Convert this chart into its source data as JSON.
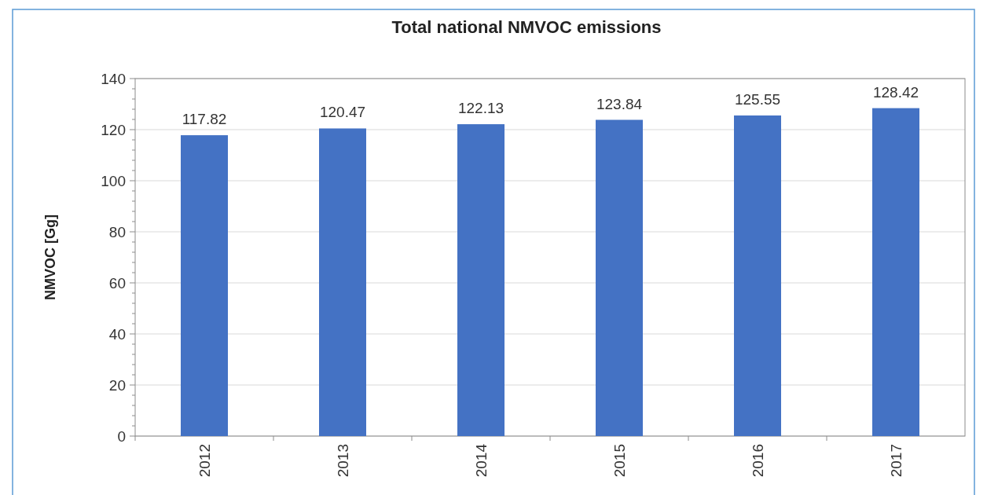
{
  "chart_data": {
    "type": "bar",
    "title": "Total national NMVOC emissions",
    "ylabel": "NMVOC [Gg]",
    "categories": [
      "2012",
      "2013",
      "2014",
      "2015",
      "2016",
      "2017"
    ],
    "values": [
      117.82,
      120.47,
      122.13,
      123.84,
      125.55,
      128.42
    ],
    "color": "#4472c4",
    "ylim": [
      0,
      140
    ],
    "yticks": [
      0,
      20,
      40,
      60,
      80,
      100,
      120,
      140
    ],
    "grid": "y",
    "data_labels": true
  }
}
